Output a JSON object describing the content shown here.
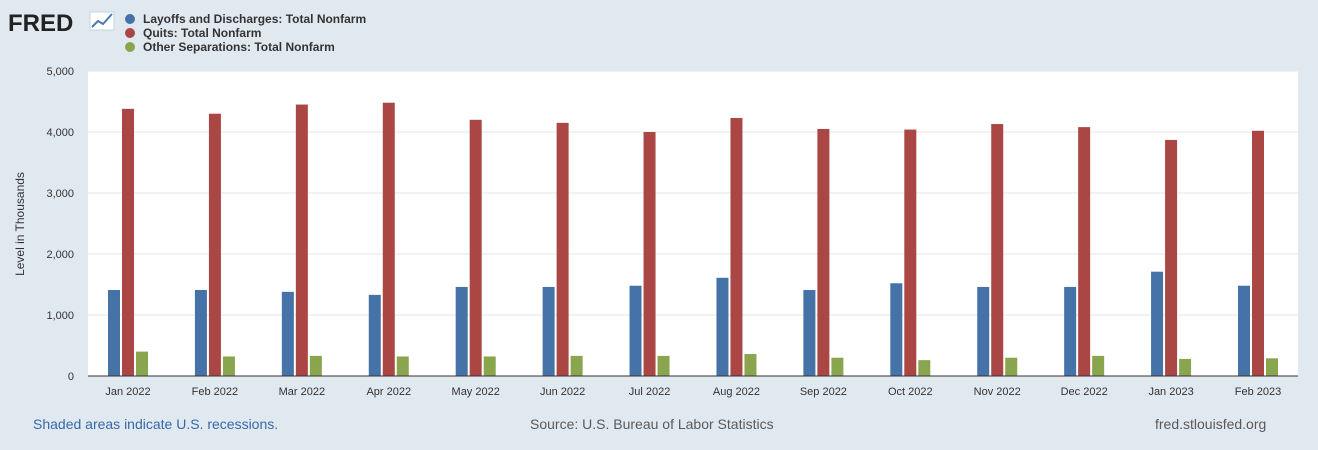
{
  "logo": {
    "text": "FRED"
  },
  "colors": {
    "series": [
      "#4572a7",
      "#aa4643",
      "#89a54e"
    ],
    "plot_bg": "#ffffff",
    "page_bg": "#e1e9f0",
    "grid": "#e6e6e6"
  },
  "footer": {
    "note": "Shaded areas indicate U.S. recessions.",
    "source": "Source: U.S. Bureau of Labor Statistics",
    "url": "fred.stlouisfed.org"
  },
  "chart_data": {
    "type": "bar",
    "categories": [
      "Jan 2022",
      "Feb 2022",
      "Mar 2022",
      "Apr 2022",
      "May 2022",
      "Jun 2022",
      "Jul 2022",
      "Aug 2022",
      "Sep 2022",
      "Oct 2022",
      "Nov 2022",
      "Dec 2022",
      "Jan 2023",
      "Feb 2023"
    ],
    "series": [
      {
        "name": "Layoffs and Discharges: Total Nonfarm",
        "color": "#4572a7",
        "values": [
          1410,
          1410,
          1380,
          1330,
          1460,
          1460,
          1480,
          1610,
          1410,
          1520,
          1460,
          1460,
          1710,
          1480
        ]
      },
      {
        "name": "Quits: Total Nonfarm",
        "color": "#aa4643",
        "values": [
          4380,
          4300,
          4450,
          4480,
          4200,
          4150,
          4000,
          4230,
          4050,
          4040,
          4130,
          4080,
          3870,
          4020
        ]
      },
      {
        "name": "Other Separations: Total Nonfarm",
        "color": "#89a54e",
        "values": [
          400,
          320,
          330,
          320,
          320,
          330,
          330,
          360,
          300,
          260,
          300,
          330,
          280,
          290
        ]
      }
    ],
    "ylabel": "Level in Thousands",
    "ylim": [
      0,
      5000
    ],
    "yticks": [
      0,
      1000,
      2000,
      3000,
      4000,
      5000
    ],
    "ytick_labels": [
      "0",
      "1,000",
      "2,000",
      "3,000",
      "4,000",
      "5,000"
    ],
    "grid": true,
    "legend_position": "top-left"
  }
}
